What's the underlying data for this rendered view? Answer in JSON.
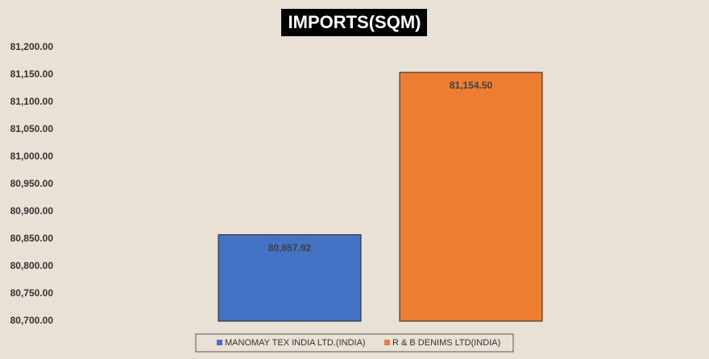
{
  "chart_data": {
    "type": "bar",
    "title": "IMPORTS(SQM)",
    "categories": [
      null
    ],
    "series": [
      {
        "name": "MANOMAY TEX INDIA LTD.(INDIA)",
        "color": "#4472c4",
        "values": [
          80857.92
        ],
        "value_labels": [
          "80,857.92"
        ]
      },
      {
        "name": "R & B DENIMS LTD(INDIA)",
        "color": "#ed7d31",
        "values": [
          81154.5
        ],
        "value_labels": [
          "81,154.50"
        ]
      }
    ],
    "ylim": [
      80700,
      81200
    ],
    "yticks": [
      {
        "value": 80700,
        "label": "80,700.00"
      },
      {
        "value": 80750,
        "label": "80,750.00"
      },
      {
        "value": 80800,
        "label": "80,800.00"
      },
      {
        "value": 80850,
        "label": "80,850.00"
      },
      {
        "value": 80900,
        "label": "80,900.00"
      },
      {
        "value": 80950,
        "label": "80,950.00"
      },
      {
        "value": 81000,
        "label": "81,000.00"
      },
      {
        "value": 81050,
        "label": "81,050.00"
      },
      {
        "value": 81100,
        "label": "81,100.00"
      },
      {
        "value": 81150,
        "label": "81,150.00"
      },
      {
        "value": 81200,
        "label": "81,200.00"
      }
    ],
    "grid": false,
    "legend": "bottom"
  }
}
